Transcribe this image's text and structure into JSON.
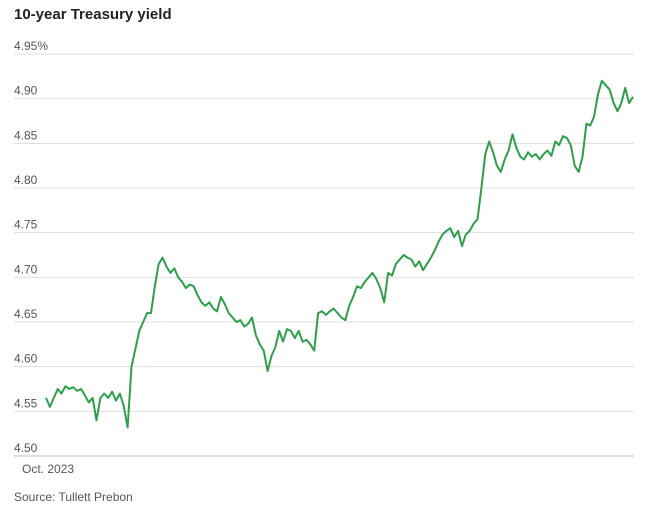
{
  "title": "10-year Treasury yield",
  "source": "Source: Tullett Prebon",
  "colors": {
    "line": "#2e9e4b",
    "grid": "#dddddd",
    "axis_text": "#555555"
  },
  "chart_data": {
    "type": "line",
    "title": "10-year Treasury yield",
    "xlabel": "",
    "ylabel": "",
    "x_tick_labels": [
      "Oct. 2023"
    ],
    "y_ticks": [
      4.5,
      4.55,
      4.6,
      4.65,
      4.7,
      4.75,
      4.8,
      4.85,
      4.9,
      4.95
    ],
    "y_tick_labels": [
      "4.50",
      "4.55",
      "4.60",
      "4.65",
      "4.70",
      "4.75",
      "4.80",
      "4.85",
      "4.90",
      "4.95%"
    ],
    "ylim": [
      4.5,
      4.95
    ],
    "grid": true,
    "series": [
      {
        "values": [
          4.565,
          4.555,
          4.565,
          4.575,
          4.57,
          4.578,
          4.575,
          4.577,
          4.573,
          4.575,
          4.568,
          4.56,
          4.565,
          4.54,
          4.565,
          4.57,
          4.565,
          4.572,
          4.562,
          4.57,
          4.556,
          4.532,
          4.6,
          4.62,
          4.64,
          4.65,
          4.66,
          4.66,
          4.69,
          4.715,
          4.722,
          4.712,
          4.705,
          4.71,
          4.7,
          4.695,
          4.688,
          4.692,
          4.69,
          4.68,
          4.672,
          4.668,
          4.672,
          4.665,
          4.662,
          4.678,
          4.67,
          4.66,
          4.655,
          4.65,
          4.652,
          4.645,
          4.648,
          4.655,
          4.635,
          4.625,
          4.618,
          4.595,
          4.612,
          4.622,
          4.64,
          4.628,
          4.642,
          4.64,
          4.632,
          4.64,
          4.628,
          4.63,
          4.625,
          4.618,
          4.66,
          4.662,
          4.658,
          4.662,
          4.665,
          4.66,
          4.655,
          4.652,
          4.668,
          4.678,
          4.69,
          4.688,
          4.695,
          4.7,
          4.705,
          4.698,
          4.688,
          4.672,
          4.705,
          4.702,
          4.715,
          4.72,
          4.725,
          4.722,
          4.72,
          4.712,
          4.718,
          4.708,
          4.715,
          4.722,
          4.73,
          4.74,
          4.748,
          4.752,
          4.755,
          4.745,
          4.752,
          4.735,
          4.748,
          4.752,
          4.76,
          4.765,
          4.8,
          4.838,
          4.852,
          4.84,
          4.825,
          4.818,
          4.832,
          4.842,
          4.86,
          4.845,
          4.835,
          4.832,
          4.84,
          4.835,
          4.838,
          4.832,
          4.838,
          4.842,
          4.836,
          4.852,
          4.848,
          4.858,
          4.856,
          4.848,
          4.825,
          4.818,
          4.835,
          4.872,
          4.87,
          4.88,
          4.905,
          4.92,
          4.915,
          4.91,
          4.895,
          4.886,
          4.895,
          4.912,
          4.895,
          4.902
        ]
      }
    ]
  }
}
